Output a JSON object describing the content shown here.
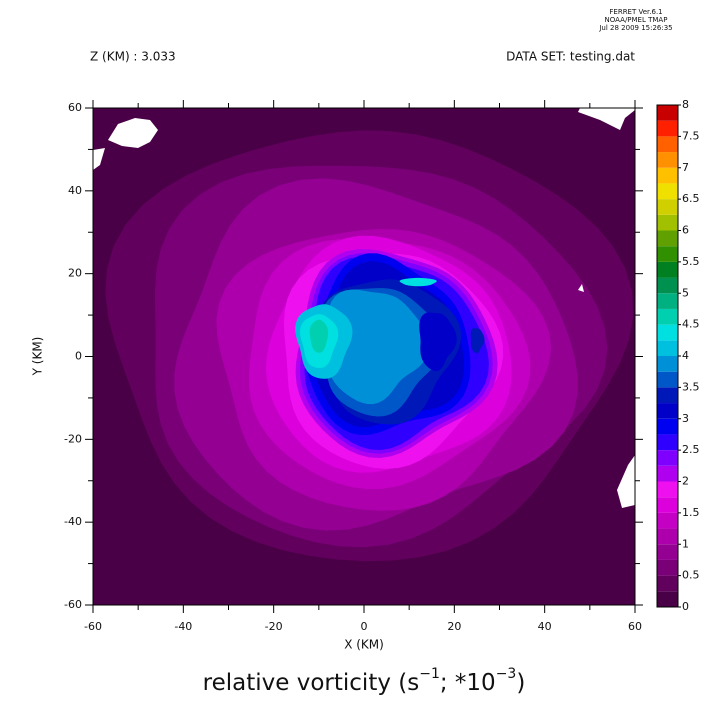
{
  "header": {
    "program": "FERRET  Ver.6.1",
    "org": "NOAA/PMEL TMAP",
    "date": "Jul 28 2009 15:26:35"
  },
  "chart_data": {
    "type": "contour",
    "subtitle_left": "Z (KM) : 3.033",
    "subtitle_right": "DATA SET: testing.dat",
    "title_parts": [
      "relative vorticity (s",
      "−1",
      "; *10",
      "−3",
      ")"
    ],
    "x_label": "X (KM)",
    "y_label": "Y (KM)",
    "xlim": [
      -60,
      60
    ],
    "xticks": [
      -60,
      -40,
      -20,
      0,
      20,
      40,
      60
    ],
    "ylim": [
      -60,
      60
    ],
    "yticks": [
      -60,
      -40,
      -20,
      0,
      20,
      40,
      60
    ],
    "levels": [
      0,
      0.25,
      0.5,
      0.75,
      1,
      1.25,
      1.5,
      1.75,
      2,
      2.25,
      2.5,
      2.75,
      3,
      3.25,
      3.5,
      3.75,
      4,
      4.25,
      4.5,
      4.75,
      5,
      5.25,
      5.5,
      5.75,
      6,
      6.25,
      6.5,
      6.75,
      7,
      7.25,
      7.5,
      7.75,
      8
    ],
    "colors": [
      "#4a0046",
      "#62005e",
      "#7a0078",
      "#930092",
      "#ad00ac",
      "#c400c4",
      "#dc00dc",
      "#ee10ee",
      "#b000f0",
      "#8000ff",
      "#3000ff",
      "#0000f0",
      "#0000c8",
      "#0018b8",
      "#0058c8",
      "#0090d8",
      "#00c0e0",
      "#00e0e0",
      "#00d0b0",
      "#00b080",
      "#009050",
      "#008020",
      "#309000",
      "#60a000",
      "#a0c000",
      "#d0d000",
      "#f0e000",
      "#ffc000",
      "#ff9000",
      "#ff6000",
      "#ff2000",
      "#c80000"
    ],
    "cbarticks": [
      0,
      0.5,
      1,
      1.5,
      2,
      2.5,
      3,
      3.5,
      4,
      4.5,
      5,
      5.5,
      6,
      6.5,
      7,
      7.5,
      8
    ]
  }
}
